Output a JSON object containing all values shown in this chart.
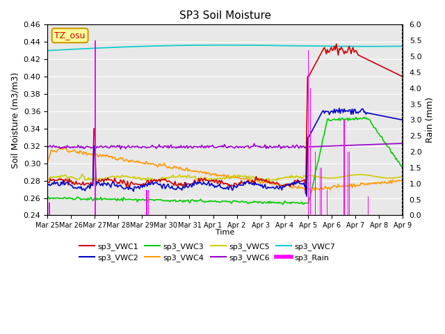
{
  "title": "SP3 Soil Moisture",
  "xlabel": "Time",
  "ylabel_left": "Soil Moisture (m3/m3)",
  "ylabel_right": "Rain (mm)",
  "ylim_left": [
    0.24,
    0.46
  ],
  "ylim_right": [
    0.0,
    6.0
  ],
  "yticks_left": [
    0.24,
    0.26,
    0.28,
    0.3,
    0.32,
    0.34,
    0.36,
    0.38,
    0.4,
    0.42,
    0.44,
    0.46
  ],
  "yticks_right": [
    0.0,
    0.5,
    1.0,
    1.5,
    2.0,
    2.5,
    3.0,
    3.5,
    4.0,
    4.5,
    5.0,
    5.5,
    6.0
  ],
  "bg_color": "#e8e8e8",
  "colors": {
    "VWC1": "#cc0000",
    "VWC2": "#0000cc",
    "VWC3": "#00cc00",
    "VWC4": "#ff9900",
    "VWC5": "#cccc00",
    "VWC6": "#9900cc",
    "VWC7": "#00cccc",
    "Rain": "#ff00ff"
  },
  "legend_labels": [
    "sp3_VWC1",
    "sp3_VWC2",
    "sp3_VWC3",
    "sp3_VWC4",
    "sp3_VWC5",
    "sp3_VWC6",
    "sp3_VWC7",
    "sp3_Rain"
  ],
  "annotation_text": "TZ_osu",
  "annotation_color": "#cc0000",
  "annotation_bg": "#ffff99",
  "annotation_border": "#cc9900"
}
